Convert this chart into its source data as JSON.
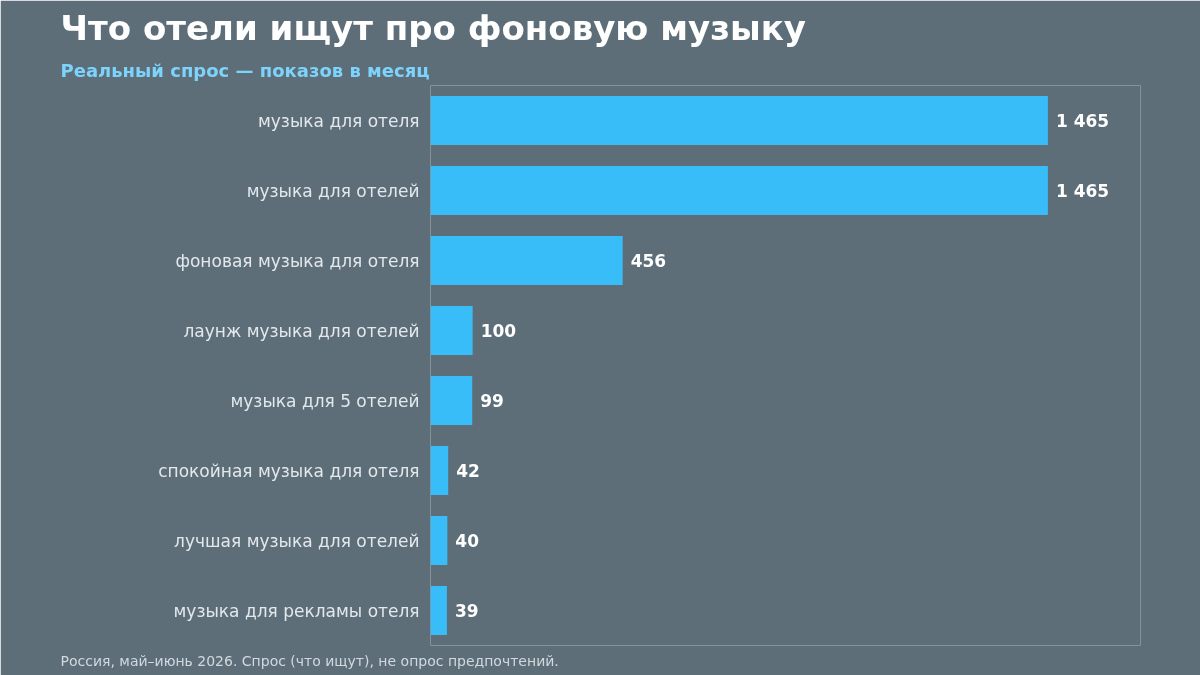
{
  "chart_data": {
    "type": "bar",
    "orientation": "horizontal",
    "title": "Что отели ищут про фоновую музыку",
    "subtitle": "Реальный спрос — показов в месяц",
    "categories": [
      "музыка для отеля",
      "музыка для отелей",
      "фоновая музыка для отеля",
      "лаунж музыка для отелей",
      "музыка для 5 отелей",
      "спокойная музыка для отеля",
      "лучшая музыка для отелей",
      "музыка для рекламы отеля"
    ],
    "values": [
      1465,
      1465,
      456,
      100,
      99,
      42,
      40,
      39
    ],
    "value_labels": [
      "1 465",
      "1 465",
      "456",
      "100",
      "99",
      "42",
      "40",
      "39"
    ],
    "color": "#38bdf8",
    "grid": false,
    "annotations": [
      "Россия, май–июнь 2026. Спрос (что ищут), не опрос предпочтений."
    ]
  }
}
